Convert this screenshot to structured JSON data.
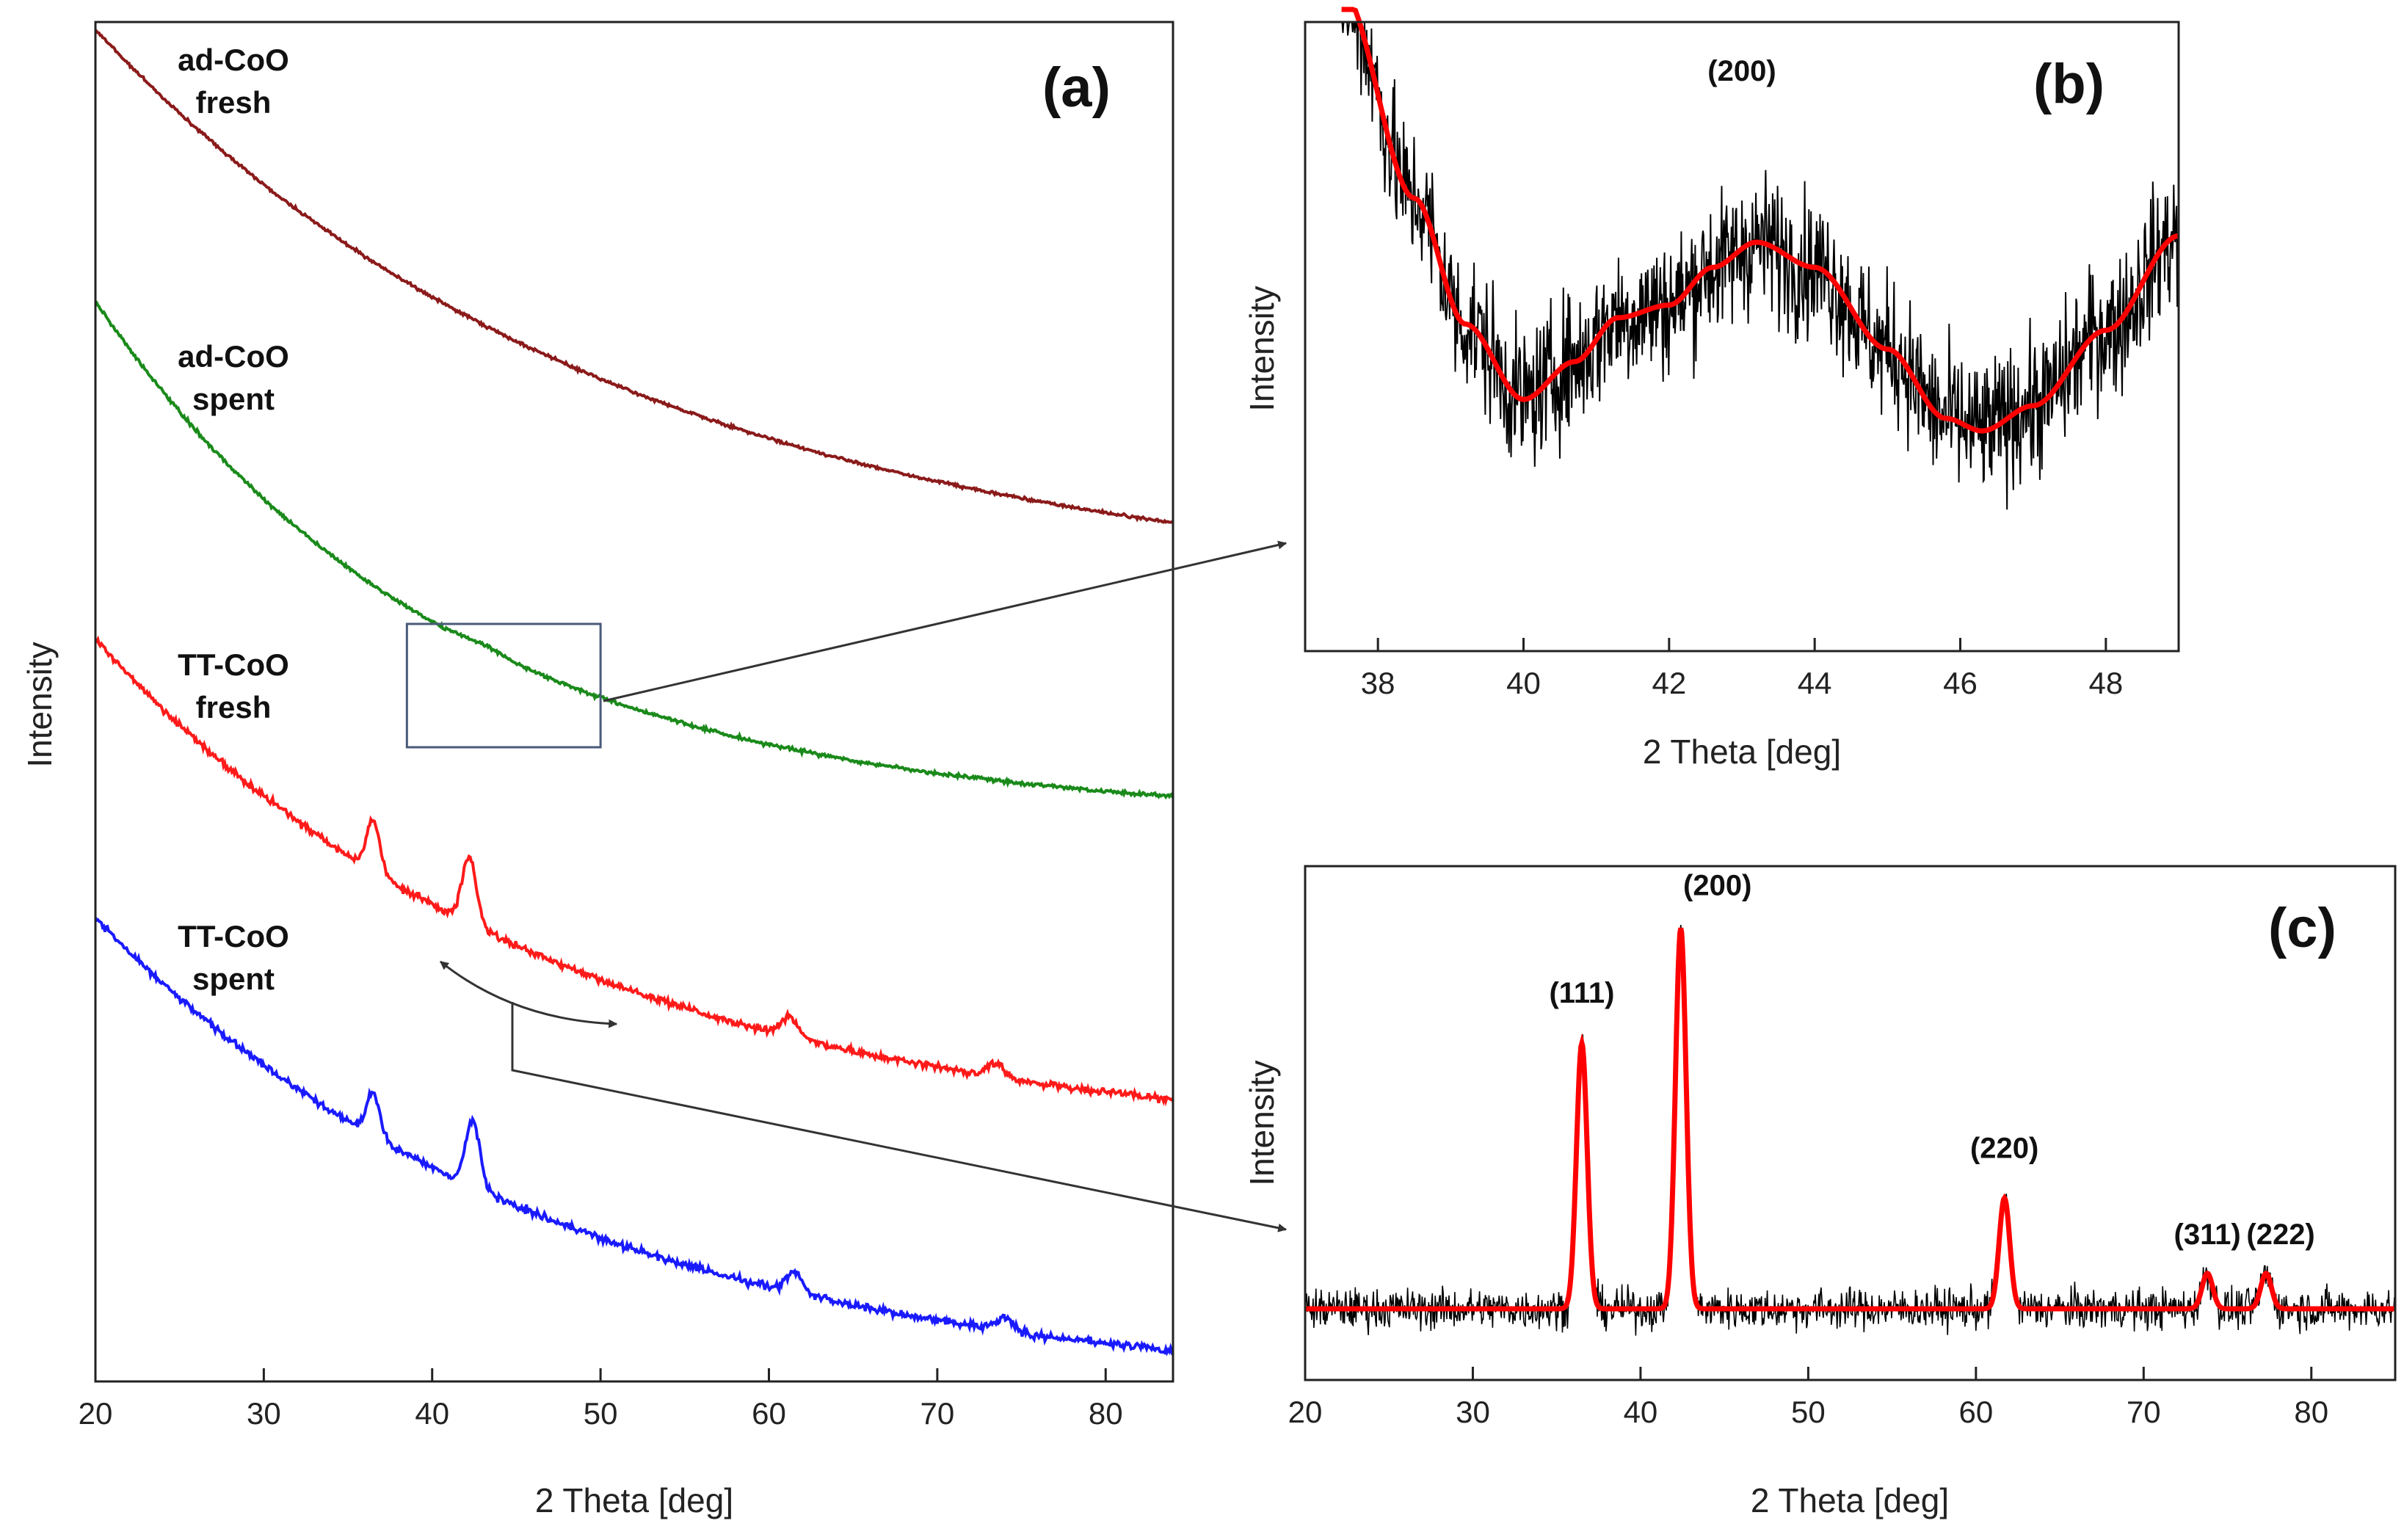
{
  "chart_data": [
    {
      "panel": "(a)",
      "type": "line",
      "xlabel": "2 Theta [deg]",
      "ylabel": "Intensity",
      "xlim": [
        20,
        84
      ],
      "xticks": [
        20,
        30,
        40,
        50,
        60,
        70,
        80
      ],
      "series": [
        {
          "label_lines": [
            "ad-CoO",
            "fresh"
          ],
          "color": "#8b1a1a",
          "shape": "decay",
          "peaks": [],
          "noise": "low"
        },
        {
          "label_lines": [
            "ad-CoO",
            "spent"
          ],
          "color": "#1a8a1a",
          "shape": "decay",
          "peaks": [],
          "noise": "low"
        },
        {
          "label_lines": [
            "TT-CoO",
            "fresh"
          ],
          "color": "#ff1a1a",
          "shape": "decay",
          "peaks": [
            36.5,
            42.2,
            61.2,
            73.5
          ],
          "noise": "medium"
        },
        {
          "label_lines": [
            "TT-CoO",
            "spent"
          ],
          "color": "#1a1aff",
          "shape": "decay",
          "peaks": [
            36.5,
            42.4,
            61.5,
            74.0
          ],
          "noise": "medium"
        }
      ],
      "zoom_box": {
        "x_range": [
          38.5,
          50
        ],
        "series": "ad-CoO spent",
        "links_to": "(b)"
      }
    },
    {
      "panel": "(b)",
      "type": "line",
      "xlabel": "2 Theta [deg]",
      "ylabel": "Intensity",
      "xlim": [
        37,
        49
      ],
      "xticks": [
        38,
        40,
        42,
        44,
        46,
        48
      ],
      "annotations": [
        {
          "text": "(200)",
          "x": 43.0
        }
      ],
      "raw_color": "#000000",
      "fit_color": "#ff0000",
      "fit_points": [
        {
          "x": 37.5,
          "y": 1.05
        },
        {
          "x": 38.5,
          "y": 0.72
        },
        {
          "x": 39.2,
          "y": 0.52
        },
        {
          "x": 40.0,
          "y": 0.4
        },
        {
          "x": 40.7,
          "y": 0.46
        },
        {
          "x": 41.3,
          "y": 0.53
        },
        {
          "x": 42.0,
          "y": 0.55
        },
        {
          "x": 42.6,
          "y": 0.61
        },
        {
          "x": 43.2,
          "y": 0.65
        },
        {
          "x": 44.0,
          "y": 0.61
        },
        {
          "x": 45.0,
          "y": 0.48
        },
        {
          "x": 45.8,
          "y": 0.37
        },
        {
          "x": 46.3,
          "y": 0.35
        },
        {
          "x": 47.0,
          "y": 0.39
        },
        {
          "x": 48.0,
          "y": 0.51
        },
        {
          "x": 49.0,
          "y": 0.66
        }
      ]
    },
    {
      "panel": "(c)",
      "type": "line",
      "xlabel": "2 Theta [deg]",
      "ylabel": "Intensity",
      "xlim": [
        20,
        85
      ],
      "xticks": [
        20,
        30,
        40,
        50,
        60,
        70,
        80
      ],
      "raw_color": "#000000",
      "fit_color": "#ff0000",
      "peaks": [
        {
          "hkl": "(111)",
          "x": 36.5,
          "height": 0.6
        },
        {
          "hkl": "(200)",
          "x": 42.4,
          "height": 0.86
        },
        {
          "hkl": "(220)",
          "x": 61.7,
          "height": 0.25
        },
        {
          "hkl": "(311)",
          "x": 73.8,
          "height": 0.08
        },
        {
          "hkl": "(222)",
          "x": 77.3,
          "height": 0.08
        }
      ],
      "links_from": "(a) TT-CoO spent"
    }
  ]
}
